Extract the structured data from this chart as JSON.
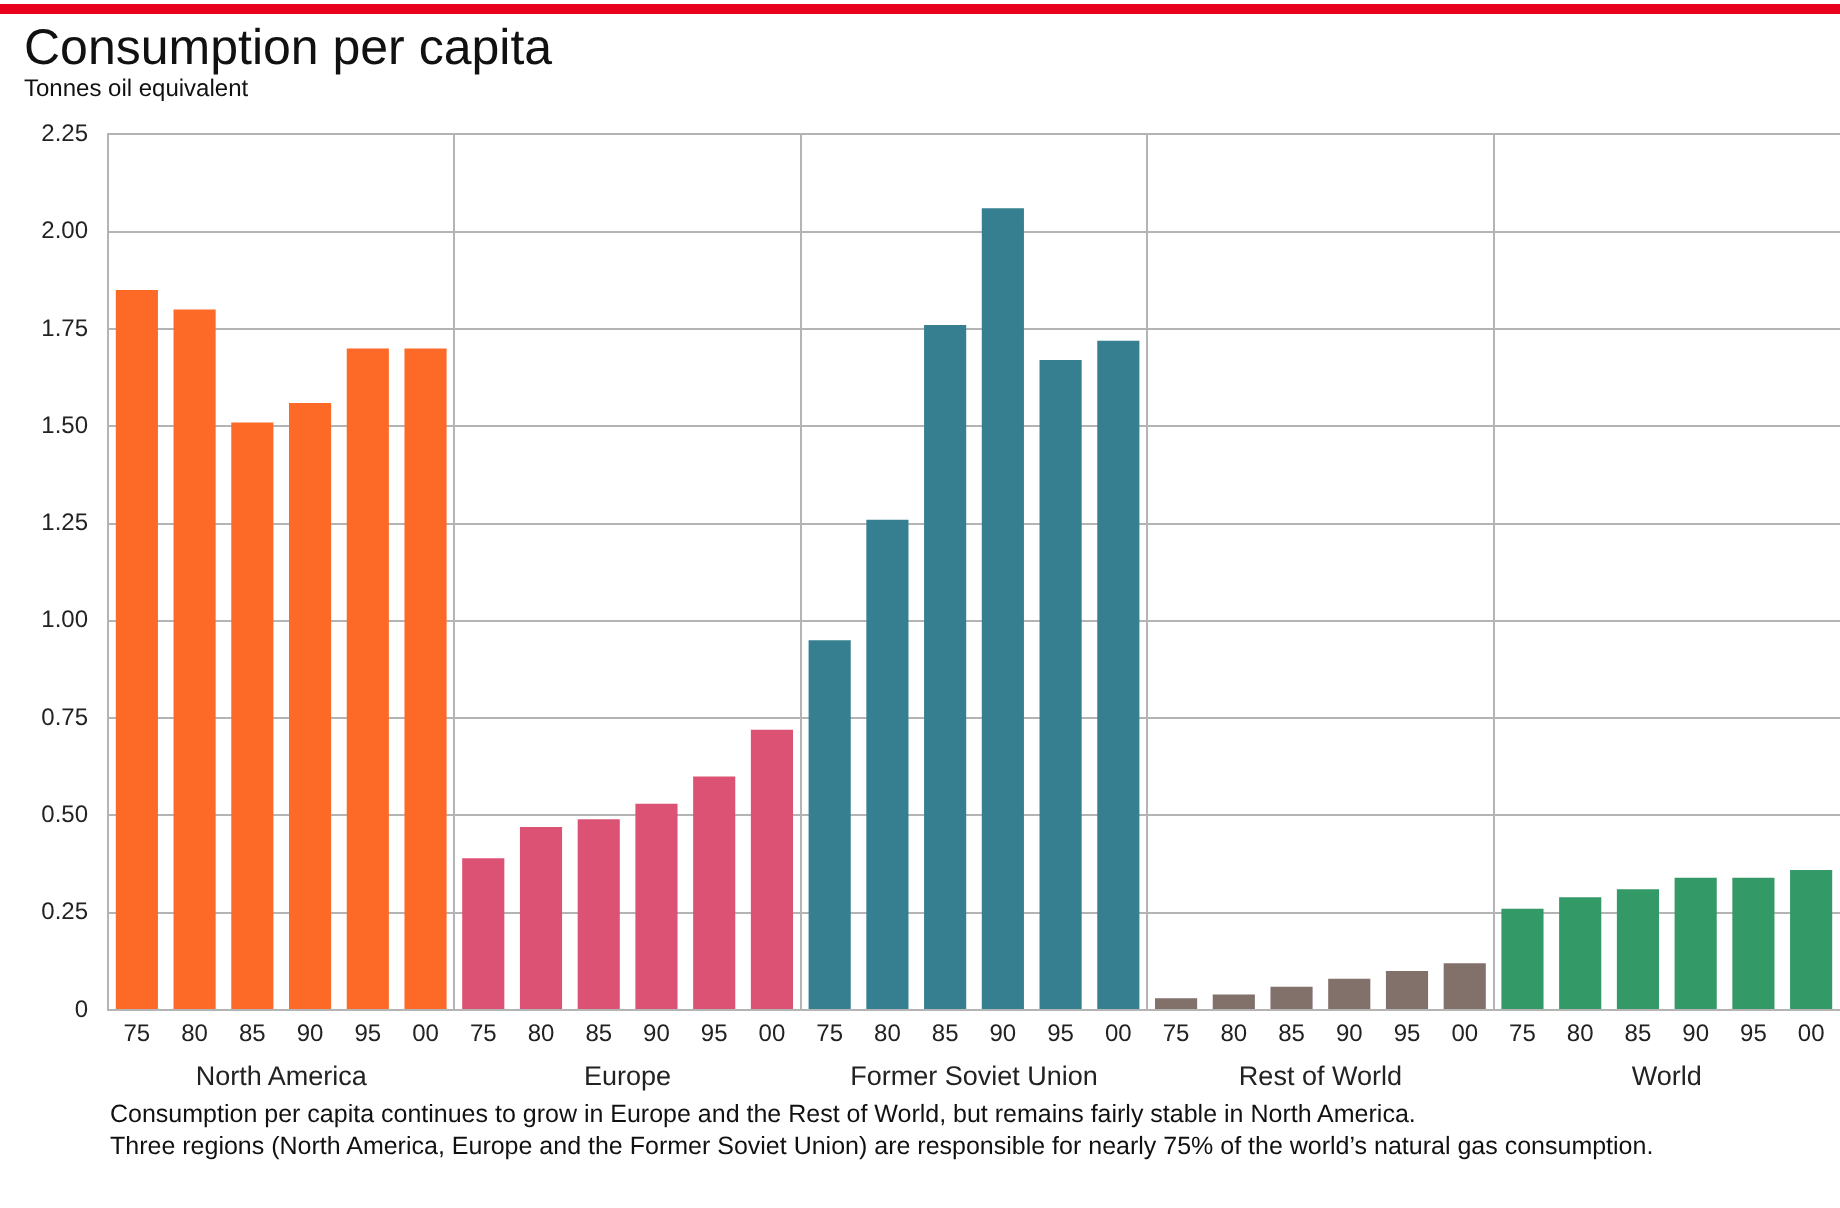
{
  "chart_data": {
    "type": "bar",
    "title": "Consumption per capita",
    "ylabel": "Tonnes oil equivalent",
    "categories": [
      "75",
      "80",
      "85",
      "90",
      "95",
      "00",
      "75",
      "80",
      "85",
      "90",
      "95",
      "00",
      "75",
      "80",
      "85",
      "90",
      "95",
      "00",
      "75",
      "80",
      "85",
      "90",
      "95",
      "00",
      "75",
      "80",
      "85",
      "90",
      "95",
      "00"
    ],
    "series": [
      {
        "name": "North America",
        "color": "#fd6a28",
        "values": [
          1.85,
          1.8,
          1.51,
          1.56,
          1.7,
          1.7,
          null,
          null,
          null,
          null,
          null,
          null,
          null,
          null,
          null,
          null,
          null,
          null,
          null,
          null,
          null,
          null,
          null,
          null,
          null,
          null,
          null,
          null,
          null,
          null
        ]
      },
      {
        "name": "Europe",
        "color": "#dc5274",
        "values": [
          null,
          null,
          null,
          null,
          null,
          null,
          0.39,
          0.47,
          0.49,
          0.53,
          0.6,
          0.72,
          null,
          null,
          null,
          null,
          null,
          null,
          null,
          null,
          null,
          null,
          null,
          null,
          null,
          null,
          null,
          null,
          null,
          null
        ]
      },
      {
        "name": "Former Soviet Union",
        "color": "#367f91",
        "values": [
          null,
          null,
          null,
          null,
          null,
          null,
          null,
          null,
          null,
          null,
          null,
          null,
          0.95,
          1.26,
          1.76,
          2.06,
          1.67,
          1.72,
          null,
          null,
          null,
          null,
          null,
          null,
          null,
          null,
          null,
          null,
          null,
          null
        ]
      },
      {
        "name": "Rest of World",
        "color": "#82706b",
        "values": [
          null,
          null,
          null,
          null,
          null,
          null,
          null,
          null,
          null,
          null,
          null,
          null,
          null,
          null,
          null,
          null,
          null,
          null,
          0.03,
          0.04,
          0.06,
          0.08,
          0.1,
          0.12,
          null,
          null,
          null,
          null,
          null,
          null
        ]
      },
      {
        "name": "World",
        "color": "#339966",
        "values": [
          null,
          null,
          null,
          null,
          null,
          null,
          null,
          null,
          null,
          null,
          null,
          null,
          null,
          null,
          null,
          null,
          null,
          null,
          null,
          null,
          null,
          null,
          null,
          null,
          0.26,
          0.29,
          0.31,
          0.34,
          0.34,
          0.36
        ]
      }
    ],
    "ylim": [
      0,
      2.25
    ],
    "yticks": [
      0,
      0.25,
      {
        "value": 0.5,
        "label": "0.50"
      },
      0.75,
      {
        "value": 1,
        "label": "1.00"
      },
      1.25,
      {
        "value": 1.5,
        "label": "1.50"
      },
      1.75,
      {
        "value": 2,
        "label": "2.00"
      },
      2.25
    ],
    "grid": true,
    "annotations": [
      "Consumption per capita continues to grow in Europe and the Rest of World, but remains fairly stable in North America.",
      "Three regions (North America, Europe and the Former Soviet Union) are responsible for nearly 75% of the world’s natural gas consumption."
    ]
  }
}
